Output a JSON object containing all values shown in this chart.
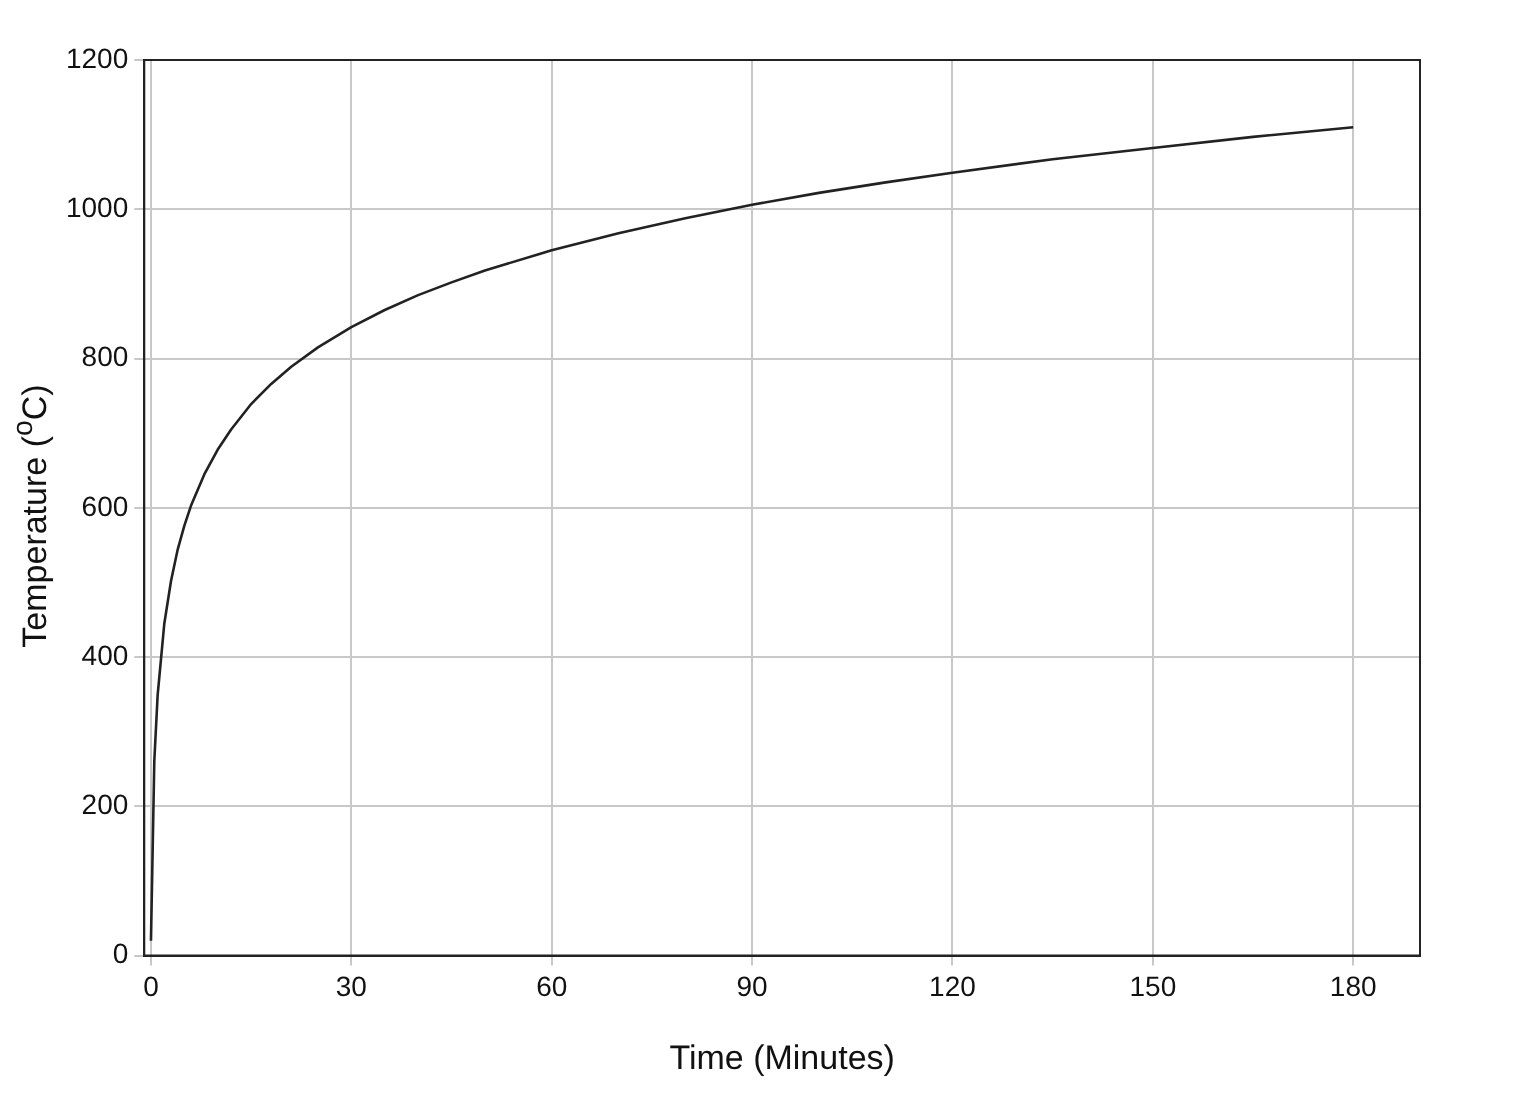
{
  "chart_data": {
    "type": "line",
    "xlabel": "Time (Minutes)",
    "ylabel": "Temperature ($^{o}$C)",
    "x": [
      0,
      0.5,
      1,
      2,
      3,
      4,
      5,
      6,
      8,
      10,
      12,
      15,
      18,
      21,
      25,
      30,
      35,
      40,
      45,
      50,
      60,
      70,
      80,
      90,
      100,
      110,
      120,
      135,
      150,
      165,
      180
    ],
    "series": [
      {
        "color": "#222222",
        "values": [
          20,
          261,
          349,
          445,
          502,
          544,
          576,
          603,
          645,
          678,
          705,
          739,
          766,
          789,
          815,
          842,
          865,
          885,
          902,
          918,
          945,
          968,
          988,
          1006,
          1022,
          1036,
          1049,
          1067,
          1082,
          1097,
          1110
        ]
      }
    ],
    "xlim": [
      -1,
      190
    ],
    "xticks": [
      0,
      30,
      60,
      90,
      120,
      150,
      180
    ],
    "ylim": [
      0,
      1200
    ],
    "yticks": [
      0,
      200,
      400,
      600,
      800,
      1000,
      1200
    ],
    "grid": true,
    "legend": false,
    "marker": "none",
    "line_style": "solid"
  }
}
